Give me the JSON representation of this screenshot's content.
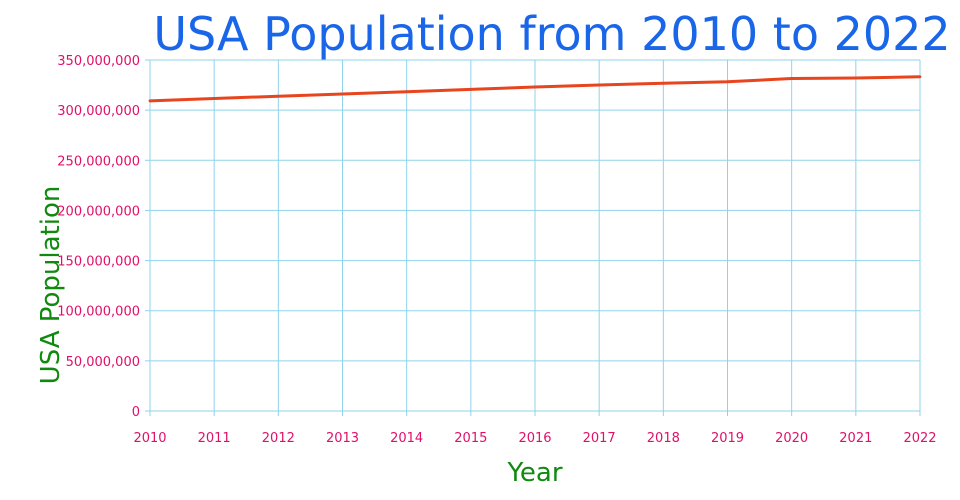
{
  "chart_data": {
    "type": "line",
    "title": "USA Population from 2010 to 2022",
    "xlabel": "Year",
    "ylabel": "USA Population",
    "x": [
      2010,
      2011,
      2012,
      2013,
      2014,
      2015,
      2016,
      2017,
      2018,
      2019,
      2020,
      2021,
      2022
    ],
    "x_tick_labels": [
      "2010",
      "2011",
      "2012",
      "2013",
      "2014",
      "2015",
      "2016",
      "2017",
      "2018",
      "2019",
      "2020",
      "2021",
      "2022"
    ],
    "y_tick_labels": [
      "0",
      "50,000,000",
      "100,000,000",
      "150,000,000",
      "200,000,000",
      "250,000,000",
      "300,000,000",
      "350,000,000"
    ],
    "y_ticks": [
      0,
      50000000,
      100000000,
      150000000,
      200000000,
      250000000,
      300000000,
      350000000
    ],
    "xlim": [
      2010,
      2022
    ],
    "ylim": [
      0,
      350000000
    ],
    "grid": true,
    "series": [
      {
        "values": [
          309300000,
          311600000,
          313900000,
          316100000,
          318400000,
          320700000,
          323100000,
          325100000,
          326800000,
          328300000,
          331500000,
          332000000,
          333300000
        ]
      }
    ],
    "colors": {
      "title": "#1a66e8",
      "axis_title": "#0f8a0f",
      "tick_label": "#e0106a",
      "grid": "#8fd3ea",
      "line": "#e8451f"
    }
  }
}
